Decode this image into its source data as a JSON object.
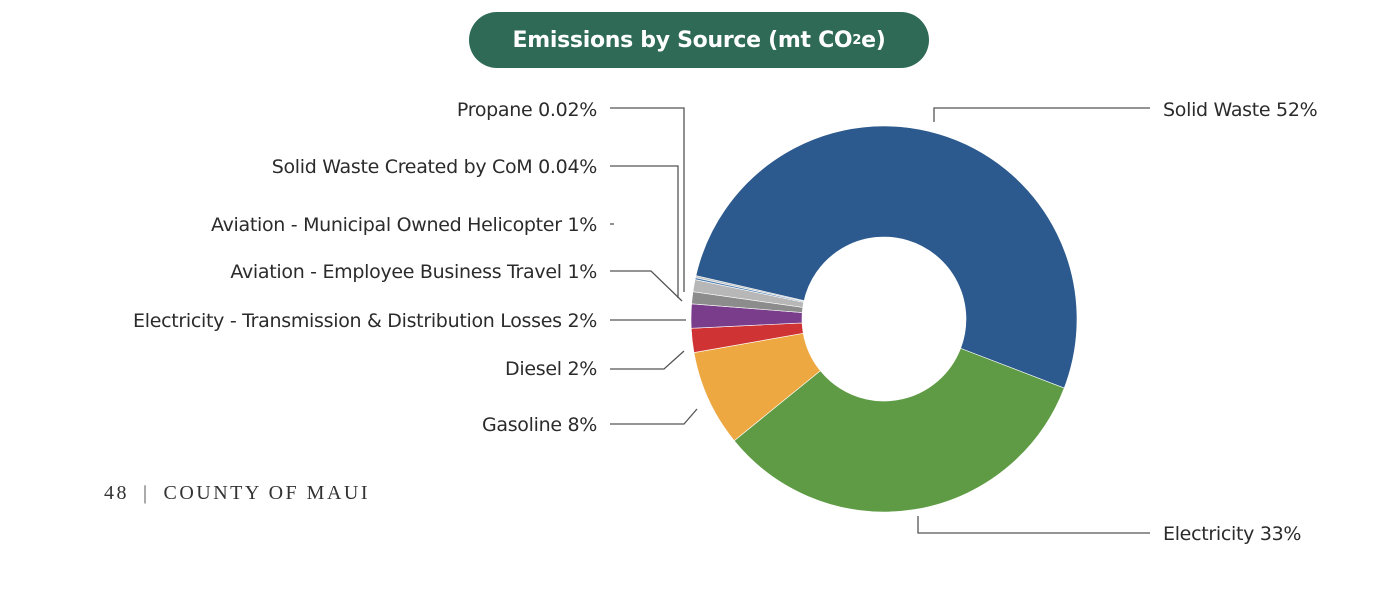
{
  "colors": {
    "title_bg": "#2f6a57",
    "solid_waste": "#2d5a8e",
    "electricity": "#5e9b44",
    "gasoline": "#eea842",
    "diesel": "#cf3333",
    "electricity_td": "#7a3d8c",
    "aviation_business": "#8c8c8c",
    "aviation_helicopter": "#b7b7b7",
    "solid_waste_com": "#4f7fb0",
    "propane": "#c8c8c8",
    "leader": "#555555"
  },
  "chart_data": {
    "type": "pie",
    "donut": true,
    "title_main": "Emissions by Source (mt CO",
    "title_sub": "2",
    "title_end": "e)",
    "slices": [
      {
        "label": "Solid Waste",
        "value": 52,
        "pct_label": "52%",
        "color": "#2d5a8e"
      },
      {
        "label": "Electricity",
        "value": 33,
        "pct_label": "33%",
        "color": "#5e9b44"
      },
      {
        "label": "Gasoline",
        "value": 8,
        "pct_label": "8%",
        "color": "#eea842"
      },
      {
        "label": "Diesel",
        "value": 2,
        "pct_label": "2%",
        "color": "#cf3333"
      },
      {
        "label": "Electricity - Transmission & Distribution Losses",
        "value": 2,
        "pct_label": "2%",
        "color": "#7a3d8c"
      },
      {
        "label": "Aviation - Employee Business Travel",
        "value": 1,
        "pct_label": "1%",
        "color": "#8c8c8c"
      },
      {
        "label": "Aviation - Municipal Owned Helicopter",
        "value": 1,
        "pct_label": "1%",
        "color": "#b7b7b7"
      },
      {
        "label": "Solid Waste Created by CoM",
        "value": 0.04,
        "pct_label": "0.04%",
        "color": "#4f7fb0"
      },
      {
        "label": "Propane",
        "value": 0.02,
        "pct_label": "0.02%",
        "color": "#c8c8c8"
      }
    ]
  },
  "labels": {
    "solid_waste": "Solid Waste 52%",
    "electricity": "Electricity 33%",
    "gasoline": "Gasoline 8%",
    "diesel": "Diesel 2%",
    "electricity_td": "Electricity - Transmission & Distribution Losses 2%",
    "aviation_business": "Aviation - Employee Business Travel 1%",
    "aviation_helicopter": "Aviation - Municipal Owned Helicopter 1%",
    "solid_waste_com": "Solid Waste Created by CoM 0.04%",
    "propane": "Propane 0.02%"
  },
  "footer": {
    "page_number": "48",
    "separator": "|",
    "publisher": "COUNTY OF MAUI"
  }
}
